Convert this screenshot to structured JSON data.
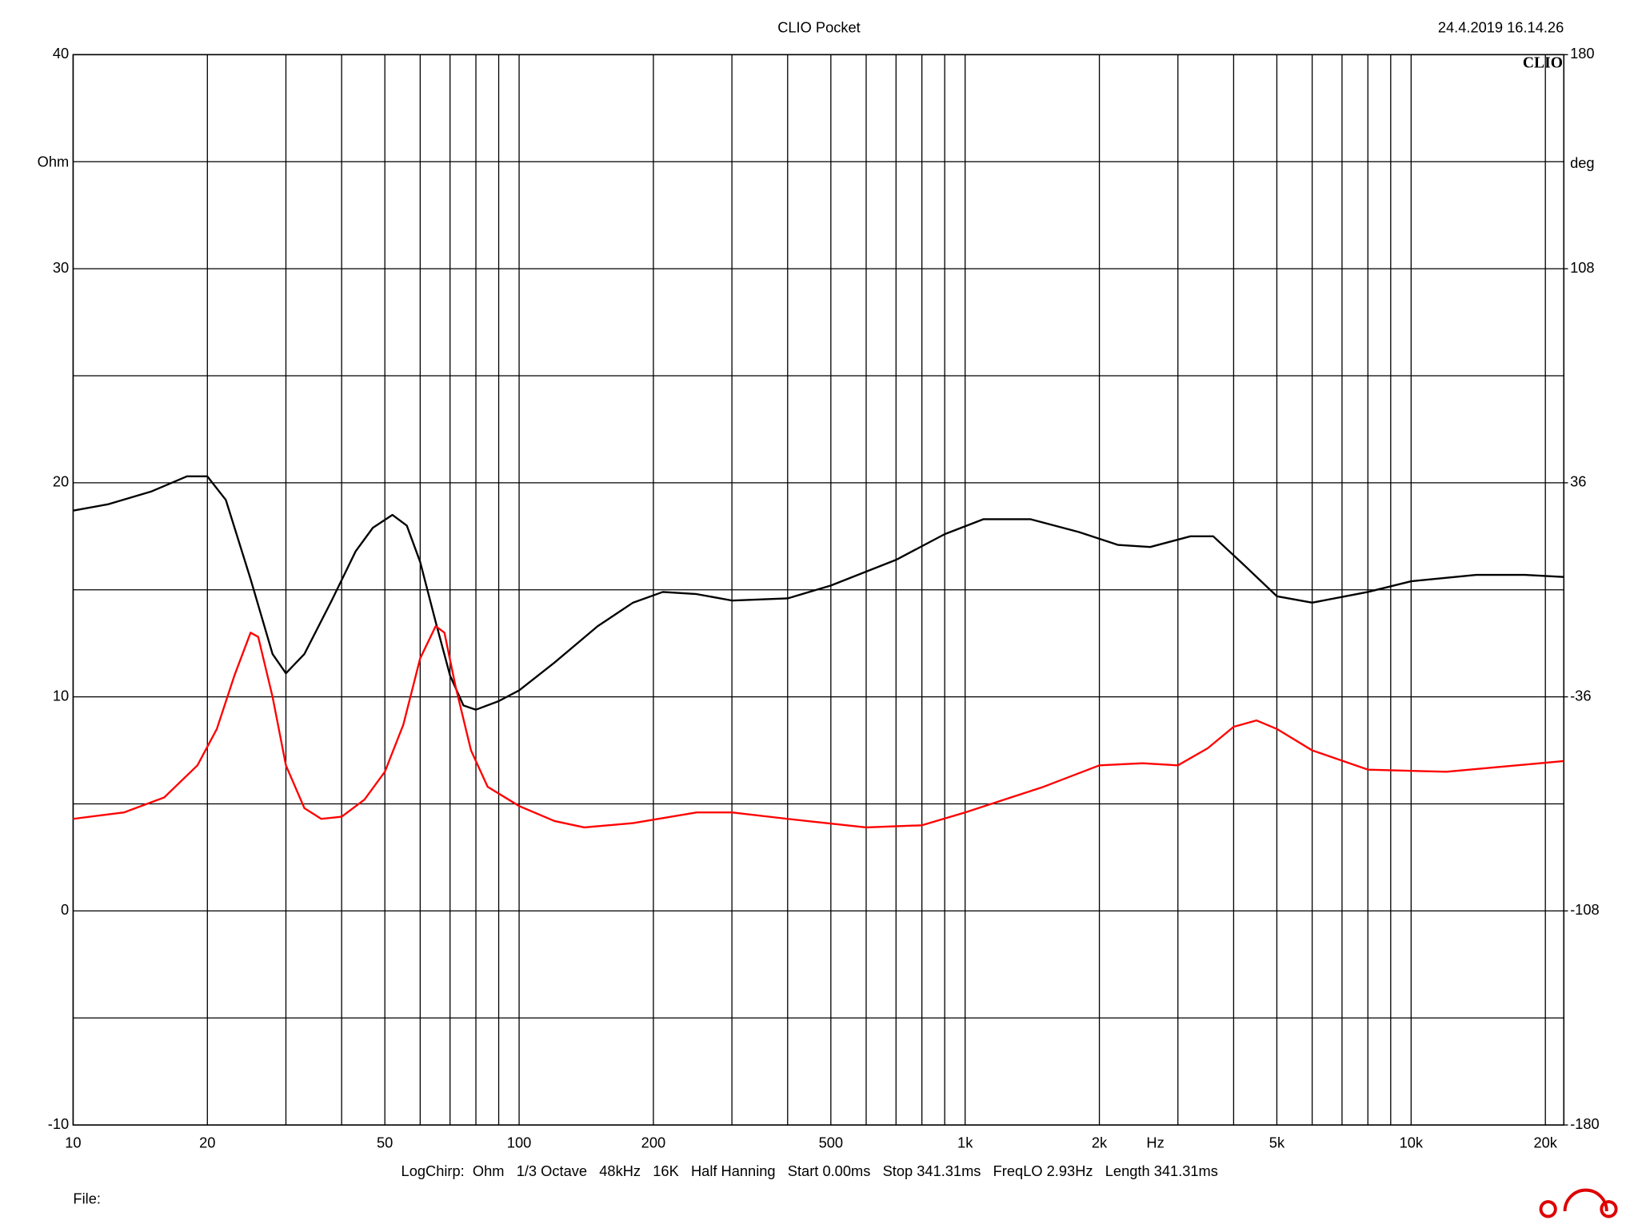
{
  "chart_data": {
    "type": "line",
    "title": "CLIO Pocket",
    "timestamp": "24.4.2019 16.14.26",
    "brand": "CLIO",
    "y_label": "Ohm",
    "y2_label": "deg",
    "x_label": "Hz",
    "footer": "LogChirp:  Ohm   1/3 Octave   48kHz   16K   Half Hanning   Start 0.00ms   Stop 341.31ms   FreqLO 2.93Hz   Length 341.31ms",
    "file_label": "File:",
    "log_x": true,
    "grid": true,
    "xlim": [
      10,
      22000
    ],
    "xticks": [
      10,
      20,
      50,
      100,
      200,
      500,
      {
        "value": 1000,
        "label": "1k"
      },
      {
        "value": 2000,
        "label": "2k"
      },
      {
        "value": 5000,
        "label": "5k"
      },
      {
        "value": 10000,
        "label": "10k"
      },
      {
        "value": 20000,
        "label": "20k"
      }
    ],
    "xgrid_minor": [
      30,
      40,
      60,
      70,
      80,
      90,
      300,
      400,
      600,
      700,
      800,
      900,
      3000,
      4000,
      6000,
      7000,
      8000,
      9000
    ],
    "ylim": [
      -10,
      40
    ],
    "yticks": [
      -10,
      0,
      10,
      20,
      30,
      40
    ],
    "ygrid_minor": [
      -5,
      5,
      15,
      25,
      35
    ],
    "y2lim": [
      -180,
      180
    ],
    "y2ticks": [
      -180,
      -108,
      -36,
      36,
      108,
      180
    ],
    "series": [
      {
        "color": "#000000",
        "x": [
          10,
          12,
          15,
          18,
          20,
          22,
          25,
          28,
          30,
          33,
          38,
          43,
          47,
          52,
          56,
          60,
          65,
          70,
          75,
          80,
          90,
          100,
          120,
          150,
          180,
          210,
          250,
          300,
          400,
          500,
          700,
          900,
          1100,
          1400,
          1800,
          2200,
          2600,
          3200,
          3600,
          4200,
          5000,
          6000,
          8000,
          10000,
          14000,
          18000,
          22000
        ],
        "values": [
          18.7,
          19.0,
          19.6,
          20.3,
          20.3,
          19.2,
          15.5,
          12.0,
          11.1,
          12.0,
          14.5,
          16.8,
          17.9,
          18.5,
          18.0,
          16.3,
          13.5,
          11.0,
          9.6,
          9.4,
          9.8,
          10.3,
          11.6,
          13.3,
          14.4,
          14.9,
          14.8,
          14.5,
          14.6,
          15.2,
          16.4,
          17.6,
          18.3,
          18.3,
          17.7,
          17.1,
          17.0,
          17.5,
          17.5,
          16.2,
          14.7,
          14.4,
          14.9,
          15.4,
          15.7,
          15.7,
          15.6
        ]
      },
      {
        "color": "#ff0000",
        "x": [
          10,
          13,
          16,
          19,
          21,
          23,
          25,
          26,
          28,
          30,
          33,
          36,
          40,
          45,
          50,
          55,
          60,
          65,
          68,
          72,
          78,
          85,
          100,
          120,
          140,
          180,
          250,
          300,
          400,
          600,
          800,
          1000,
          1500,
          2000,
          2500,
          3000,
          3500,
          4000,
          4500,
          5000,
          6000,
          8000,
          12000,
          22000
        ],
        "values": [
          4.3,
          4.6,
          5.3,
          6.8,
          8.5,
          11.0,
          13.0,
          12.8,
          10.0,
          6.8,
          4.8,
          4.3,
          4.4,
          5.2,
          6.5,
          8.7,
          11.8,
          13.3,
          13.0,
          10.5,
          7.5,
          5.8,
          4.9,
          4.2,
          3.9,
          4.1,
          4.6,
          4.6,
          4.3,
          3.9,
          4.0,
          4.6,
          5.8,
          6.8,
          6.9,
          6.8,
          7.6,
          8.6,
          8.9,
          8.5,
          7.5,
          6.6,
          6.5,
          7.0
        ]
      }
    ]
  }
}
